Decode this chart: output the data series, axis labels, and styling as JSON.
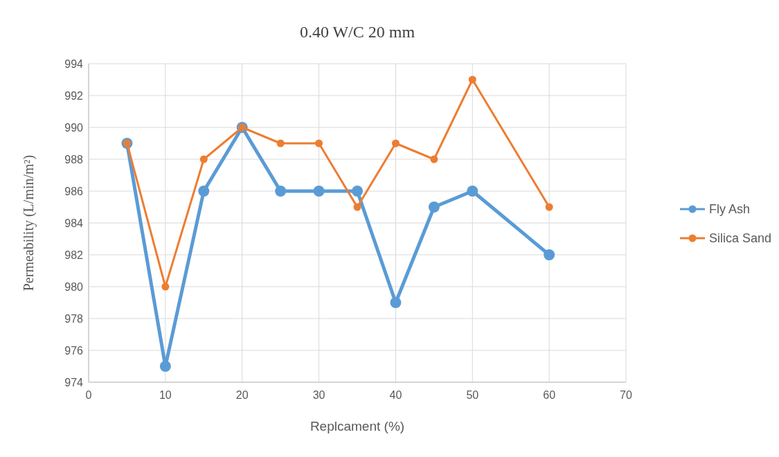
{
  "chart_data": {
    "type": "line",
    "title": "0.40 W/C 20 mm",
    "xlabel": "Replcament (%)",
    "ylabel": "Permeability (L/min/m²)",
    "x": [
      5,
      10,
      15,
      20,
      25,
      30,
      35,
      40,
      45,
      50,
      60
    ],
    "series": [
      {
        "name": "Fly Ash",
        "color": "#5b9bd5",
        "values": [
          989,
          975,
          986,
          990,
          986,
          986,
          986,
          979,
          985,
          986,
          982
        ]
      },
      {
        "name": "Silica Sand",
        "color": "#ed7d31",
        "values": [
          989,
          980,
          988,
          990,
          989,
          989,
          985,
          989,
          988,
          993,
          985
        ]
      }
    ],
    "xlim": [
      0,
      70
    ],
    "xticks": [
      0,
      10,
      20,
      30,
      40,
      50,
      60,
      70
    ],
    "ylim": [
      974,
      994
    ],
    "yticks": [
      974,
      976,
      978,
      980,
      982,
      984,
      986,
      988,
      990,
      992,
      994
    ],
    "grid": true,
    "legend": "right",
    "marker": "circle",
    "line_style": "solid"
  }
}
